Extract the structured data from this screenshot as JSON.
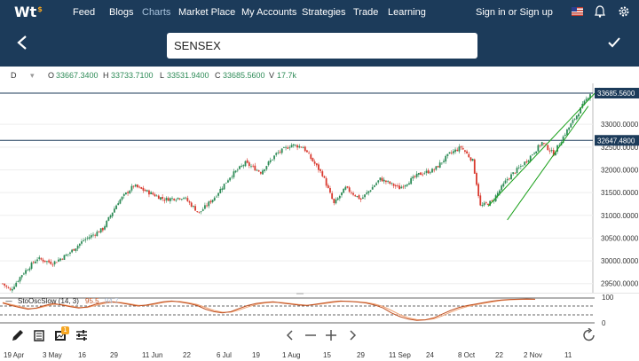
{
  "nav": {
    "logo": "Wt",
    "logo_sup": "$",
    "links": [
      "Feed",
      "Blogs",
      "Charts",
      "Market Place",
      "My Accounts",
      "Strategies",
      "Trade",
      "Learning"
    ],
    "active": "Charts",
    "signin": "Sign in or Sign up",
    "icons": [
      "flag-icon",
      "bell-icon",
      "gear-icon"
    ]
  },
  "toolbar": {
    "search_value": "SENSEX",
    "back_icon": "back-arrow-icon",
    "confirm_icon": "checkmark-icon"
  },
  "ohlc": {
    "interval": "D",
    "o_label": "O",
    "o": "33667.3400",
    "h_label": "H",
    "h": "33733.7100",
    "l_label": "L",
    "l": "33531.9400",
    "c_label": "C",
    "c": "33685.5600",
    "v_label": "V",
    "v": "17.7k"
  },
  "study": {
    "label": "StoOscSlow (14, 3)",
    "k": "95.5",
    "d": "94.7",
    "y_ticks": [
      "100",
      "0"
    ]
  },
  "colors": {
    "nav_bg": "#1c3b5a",
    "up": "#2e8b57",
    "down": "#d9392e",
    "trendline": "#1aa01a",
    "hline": "#1c3b5a"
  },
  "chart_data": {
    "type": "candlestick",
    "symbol": "SENSEX",
    "y_ticks": [
      29500,
      30000,
      30500,
      31000,
      31500,
      32000,
      32500,
      33000
    ],
    "ylim": [
      29300,
      33900
    ],
    "price_labels": [
      "33685.5600",
      "32647.4800"
    ],
    "hlines": [
      33685.56,
      32647.48
    ],
    "x_ticks": [
      "19 Apr",
      "3 May",
      "16",
      "29",
      "11 Jun",
      "22",
      "6 Jul",
      "19",
      "1 Aug",
      "15",
      "29",
      "11 Sep",
      "24",
      "8 Oct",
      "22",
      "2 Nov",
      "11"
    ],
    "keypoints": [
      [
        0,
        29500
      ],
      [
        4,
        29350
      ],
      [
        10,
        29700
      ],
      [
        18,
        30050
      ],
      [
        26,
        29950
      ],
      [
        34,
        30150
      ],
      [
        42,
        30450
      ],
      [
        52,
        30700
      ],
      [
        60,
        31300
      ],
      [
        68,
        31650
      ],
      [
        76,
        31500
      ],
      [
        84,
        31350
      ],
      [
        94,
        31400
      ],
      [
        102,
        31050
      ],
      [
        110,
        31400
      ],
      [
        118,
        31850
      ],
      [
        126,
        32150
      ],
      [
        134,
        31950
      ],
      [
        142,
        32350
      ],
      [
        150,
        32550
      ],
      [
        156,
        32500
      ],
      [
        160,
        32250
      ],
      [
        166,
        31900
      ],
      [
        172,
        31250
      ],
      [
        178,
        31600
      ],
      [
        186,
        31350
      ],
      [
        196,
        31800
      ],
      [
        206,
        31600
      ],
      [
        216,
        31900
      ],
      [
        224,
        32000
      ],
      [
        232,
        32350
      ],
      [
        238,
        32500
      ],
      [
        244,
        32200
      ],
      [
        248,
        31200
      ],
      [
        254,
        31300
      ],
      [
        262,
        31800
      ],
      [
        272,
        32200
      ],
      [
        280,
        32600
      ],
      [
        286,
        32350
      ],
      [
        292,
        32800
      ],
      [
        298,
        33200
      ],
      [
        305,
        33685
      ]
    ],
    "candle_count": 306,
    "trend_channel": [
      {
        "x": [
          252,
          310
        ],
        "y": [
          31200,
          33800
        ]
      },
      {
        "x": [
          262,
          304
        ],
        "y": [
          30900,
          33400
        ]
      }
    ],
    "study_k": [
      80,
      70,
      62,
      55,
      60,
      70,
      78,
      72,
      65,
      60,
      64,
      75,
      82,
      85,
      80,
      74,
      68,
      72,
      78,
      85,
      88,
      84,
      78,
      70,
      55,
      45,
      40,
      45,
      58,
      70,
      78,
      82,
      85,
      80,
      76,
      72,
      70,
      75,
      80,
      85,
      88,
      86,
      84,
      80,
      72,
      60,
      40,
      25,
      15,
      10,
      12,
      20,
      35,
      50,
      62,
      70,
      76,
      82,
      88,
      92,
      94,
      95,
      96,
      95
    ],
    "study_d": [
      82,
      74,
      66,
      58,
      58,
      66,
      74,
      74,
      68,
      62,
      62,
      70,
      78,
      83,
      82,
      77,
      71,
      70,
      75,
      82,
      86,
      86,
      81,
      74,
      62,
      50,
      43,
      43,
      52,
      64,
      74,
      80,
      83,
      82,
      78,
      74,
      71,
      73,
      77,
      82,
      86,
      87,
      85,
      82,
      76,
      66,
      50,
      33,
      20,
      13,
      12,
      16,
      28,
      43,
      56,
      66,
      73,
      79,
      85,
      90,
      93,
      94,
      95,
      94.7
    ]
  }
}
